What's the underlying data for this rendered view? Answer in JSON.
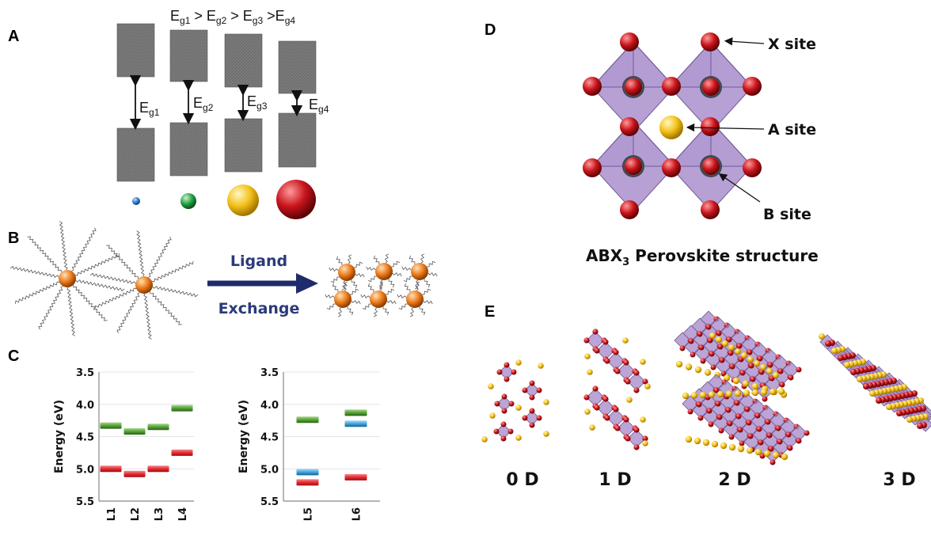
{
  "panels": {
    "a": {
      "label": "A",
      "title_parts": [
        "E",
        "g1",
        " > E",
        "g2",
        " > E",
        "g3",
        " >E",
        "g4"
      ],
      "gaps": [
        {
          "main": "E",
          "sub": "g1"
        },
        {
          "main": "E",
          "sub": "g2"
        },
        {
          "main": "E",
          "sub": "g3"
        },
        {
          "main": "E",
          "sub": "g4"
        }
      ],
      "sphere_colors": [
        "#2b78c9",
        "#1f9c3f",
        "#f3c21a",
        "#c8141b"
      ]
    },
    "b": {
      "label": "B",
      "arrow_line1": "Ligand",
      "arrow_line2": "Exchange"
    },
    "c": {
      "label": "C"
    },
    "d": {
      "label": "D",
      "sites": {
        "x": "X site",
        "a": "A site",
        "b": "B site"
      },
      "caption_prefix": "ABX",
      "caption_sub": "3",
      "caption_rest": " Perovskite structure"
    },
    "e": {
      "label": "E",
      "dims": [
        "0 D",
        "1 D",
        "2 D",
        "3 D"
      ]
    }
  },
  "colors": {
    "homo": "#e0262b",
    "lumo": "#3aa0da",
    "green": "#4d9e2f",
    "block": "#7a7a7a",
    "octahedron": "#a98fcc",
    "x_atom": "#c8141b",
    "a_atom": "#f1c21b"
  },
  "chart_data": [
    {
      "type": "range-bar",
      "ylabel": "Energy (eV)",
      "ylim": [
        3.5,
        5.5
      ],
      "y_inverted": true,
      "y_ticks": [
        "3.5",
        "4.0",
        "4.5",
        "5.0",
        "5.5"
      ],
      "categories": [
        "L1",
        "L2",
        "L3",
        "L4"
      ],
      "series": [
        {
          "color": "green",
          "values": [
            4.33,
            4.42,
            4.35,
            4.06
          ]
        },
        {
          "color": "red",
          "values": [
            5.0,
            5.08,
            5.0,
            4.75
          ]
        }
      ]
    },
    {
      "type": "range-bar",
      "ylabel": "Energy (eV)",
      "ylim": [
        3.5,
        5.5
      ],
      "y_inverted": true,
      "y_ticks": [
        "3.5",
        "4.0",
        "4.5",
        "5.0",
        "5.5"
      ],
      "categories": [
        "L5",
        "L6"
      ],
      "series": [
        {
          "color": "green",
          "values": [
            4.24,
            4.13
          ]
        },
        {
          "color": "blue",
          "values": [
            5.05,
            4.3
          ]
        },
        {
          "color": "red",
          "values": [
            5.21,
            5.13
          ]
        }
      ]
    }
  ]
}
